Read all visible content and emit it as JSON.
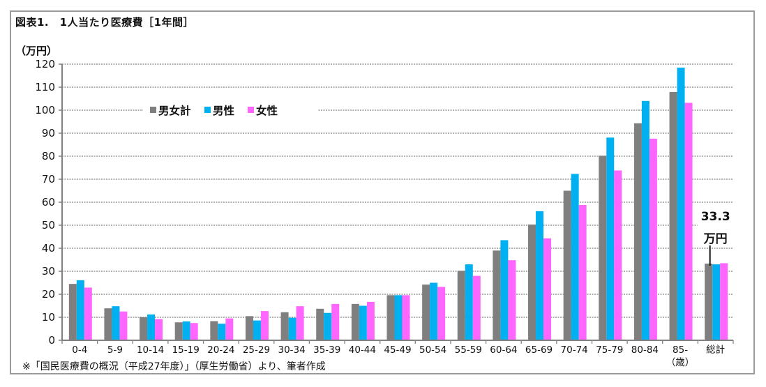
{
  "title": "図表1.　1人当たり医療費［1年間］",
  "unit_label": "（万円）",
  "footnote": "※「国民医療費の概況（平成27年度）」（厚生労働省）より、筆者作成",
  "annotation": {
    "value": "33.3",
    "unit": "万円"
  },
  "x_axis_suffix": "（歳）",
  "colors": {
    "total": "#7f7f7f",
    "male": "#00b0f0",
    "female": "#ff66ff",
    "grid": "#808080",
    "axis": "#808080"
  },
  "legend": [
    {
      "label": "男女計",
      "key": "total"
    },
    {
      "label": "男性",
      "key": "male"
    },
    {
      "label": "女性",
      "key": "female"
    }
  ],
  "chart_data": {
    "type": "bar",
    "title": "1人当たり医療費［1年間］",
    "xlabel": "（歳）",
    "ylabel": "（万円）",
    "ylim": [
      0,
      120
    ],
    "yticks": [
      0,
      10,
      20,
      30,
      40,
      50,
      60,
      70,
      80,
      90,
      100,
      110,
      120
    ],
    "grid": true,
    "legend_position": "upper-left inside plot",
    "categories": [
      "0-4",
      "5-9",
      "10-14",
      "15-19",
      "20-24",
      "25-29",
      "30-34",
      "35-39",
      "40-44",
      "45-49",
      "50-54",
      "55-59",
      "60-64",
      "65-69",
      "70-74",
      "75-79",
      "80-84",
      "85-",
      "総計"
    ],
    "series": [
      {
        "name": "男女計",
        "values": [
          24.5,
          13.9,
          10.0,
          7.8,
          8.3,
          10.5,
          12.2,
          13.7,
          15.8,
          19.6,
          24.2,
          30.2,
          39.0,
          50.3,
          65.0,
          80.2,
          94.3,
          107.9,
          33.3
        ]
      },
      {
        "name": "男性",
        "values": [
          26.1,
          14.8,
          11.2,
          8.2,
          7.2,
          8.6,
          9.8,
          11.9,
          15.0,
          19.6,
          25.0,
          33.0,
          43.5,
          56.1,
          72.3,
          88.1,
          104.0,
          118.5,
          33.0
        ]
      },
      {
        "name": "女性",
        "values": [
          22.9,
          12.5,
          9.2,
          7.5,
          9.5,
          12.7,
          14.8,
          15.8,
          16.7,
          19.6,
          23.2,
          28.0,
          34.8,
          44.3,
          58.8,
          73.8,
          87.6,
          103.2,
          33.5
        ]
      }
    ],
    "annotations": [
      {
        "category": "総計",
        "text": "33.3 万円"
      }
    ]
  }
}
